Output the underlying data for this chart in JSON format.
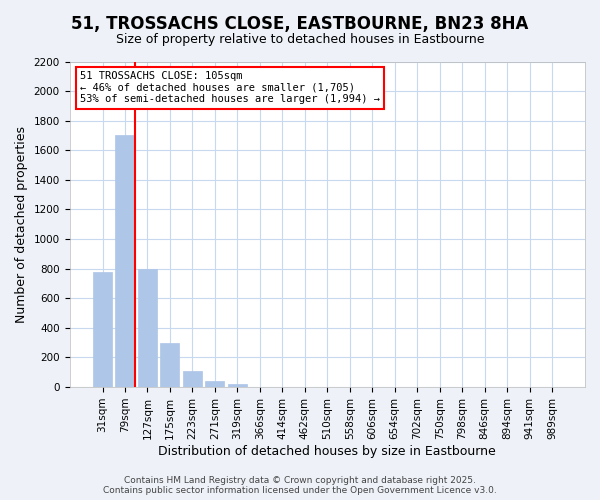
{
  "title": "51, TROSSACHS CLOSE, EASTBOURNE, BN23 8HA",
  "subtitle": "Size of property relative to detached houses in Eastbourne",
  "xlabel": "Distribution of detached houses by size in Eastbourne",
  "ylabel": "Number of detached properties",
  "bar_labels": [
    "31sqm",
    "79sqm",
    "127sqm",
    "175sqm",
    "223sqm",
    "271sqm",
    "319sqm",
    "366sqm",
    "414sqm",
    "462sqm",
    "510sqm",
    "558sqm",
    "606sqm",
    "654sqm",
    "702sqm",
    "750sqm",
    "798sqm",
    "846sqm",
    "894sqm",
    "941sqm",
    "989sqm"
  ],
  "bar_values": [
    780,
    1700,
    800,
    300,
    110,
    40,
    20,
    0,
    0,
    0,
    0,
    0,
    0,
    0,
    0,
    0,
    0,
    0,
    0,
    0,
    0
  ],
  "bar_color": "#aec6e8",
  "bar_edge_color": "#aec6e8",
  "vline_color": "red",
  "vline_x": 1.425,
  "ylim": [
    0,
    2200
  ],
  "yticks": [
    0,
    200,
    400,
    600,
    800,
    1000,
    1200,
    1400,
    1600,
    1800,
    2000,
    2200
  ],
  "annotation_title": "51 TROSSACHS CLOSE: 105sqm",
  "annotation_line1": "← 46% of detached houses are smaller (1,705)",
  "annotation_line2": "53% of semi-detached houses are larger (1,994) →",
  "annotation_box_color": "white",
  "annotation_box_edge_color": "red",
  "footer_line1": "Contains HM Land Registry data © Crown copyright and database right 2025.",
  "footer_line2": "Contains public sector information licensed under the Open Government Licence v3.0.",
  "bg_color": "#eef2f8",
  "plot_bg_color": "white",
  "grid_color": "#c8d8ee",
  "title_fontsize": 12,
  "subtitle_fontsize": 9,
  "axis_label_fontsize": 9,
  "tick_fontsize": 7.5,
  "footer_fontsize": 6.5
}
